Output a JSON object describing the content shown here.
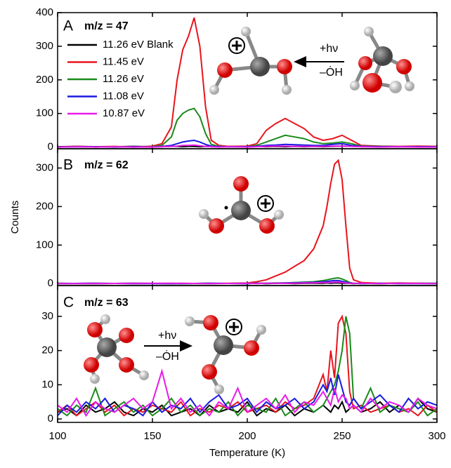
{
  "chart_data": [
    {
      "type": "line",
      "panel": "A",
      "label": "m/z = 47",
      "annotations": [
        "+hν",
        "–ȮH"
      ],
      "xlim": [
        100,
        300
      ],
      "ylim": [
        -5,
        400
      ],
      "yticks": [
        0,
        100,
        200,
        300,
        400
      ],
      "x": [
        100,
        110,
        120,
        130,
        140,
        150,
        155,
        160,
        163,
        166,
        169,
        172,
        175,
        178,
        181,
        185,
        190,
        200,
        205,
        210,
        215,
        220,
        225,
        230,
        235,
        240,
        245,
        250,
        255,
        260,
        270,
        280,
        290,
        300
      ],
      "series": [
        {
          "name": "11.26 eV Blank",
          "color": "#000000",
          "values": [
            1,
            2,
            1,
            1,
            2,
            1,
            1,
            2,
            2,
            1,
            2,
            2,
            1,
            2,
            1,
            1,
            2,
            1,
            2,
            1,
            2,
            1,
            2,
            1,
            2,
            1,
            2,
            3,
            2,
            1,
            2,
            1,
            2,
            1
          ]
        },
        {
          "name": "11.45 eV",
          "color": "#e8141c",
          "values": [
            0,
            2,
            1,
            2,
            0,
            3,
            10,
            60,
            200,
            290,
            330,
            385,
            300,
            120,
            20,
            5,
            2,
            3,
            10,
            50,
            70,
            85,
            70,
            55,
            30,
            20,
            25,
            35,
            20,
            5,
            3,
            2,
            3,
            2
          ]
        },
        {
          "name": "11.26 eV",
          "color": "#1a8a1a",
          "values": [
            0,
            1,
            0,
            1,
            0,
            1,
            5,
            30,
            80,
            100,
            110,
            115,
            90,
            40,
            8,
            2,
            1,
            1,
            5,
            15,
            25,
            35,
            30,
            25,
            15,
            10,
            12,
            15,
            10,
            3,
            2,
            1,
            1,
            1
          ]
        },
        {
          "name": "11.08 eV",
          "color": "#1a1ae0",
          "values": [
            0,
            1,
            1,
            0,
            1,
            0,
            2,
            5,
            10,
            15,
            18,
            20,
            15,
            8,
            3,
            1,
            1,
            1,
            2,
            5,
            6,
            8,
            7,
            6,
            5,
            5,
            8,
            10,
            5,
            2,
            1,
            1,
            1,
            1
          ]
        },
        {
          "name": "10.87 eV",
          "color": "#e81ae8",
          "values": [
            0,
            1,
            0,
            1,
            0,
            0,
            1,
            2,
            3,
            5,
            5,
            6,
            4,
            2,
            1,
            0,
            1,
            0,
            1,
            2,
            3,
            3,
            2,
            2,
            2,
            2,
            3,
            3,
            2,
            1,
            0,
            1,
            0,
            0
          ]
        }
      ]
    },
    {
      "type": "line",
      "panel": "B",
      "label": "m/z = 62",
      "ylabel": "Counts",
      "xlim": [
        100,
        300
      ],
      "ylim": [
        -5,
        350
      ],
      "yticks": [
        0,
        100,
        200,
        300
      ],
      "x": [
        100,
        120,
        140,
        160,
        180,
        200,
        205,
        210,
        215,
        220,
        225,
        230,
        235,
        240,
        242,
        244,
        246,
        248,
        250,
        252,
        254,
        256,
        260,
        270,
        280,
        300
      ],
      "series": [
        {
          "color": "#000000",
          "values": [
            1,
            0,
            1,
            0,
            1,
            0,
            1,
            0,
            1,
            1,
            0,
            1,
            1,
            1,
            2,
            1,
            2,
            2,
            1,
            1,
            1,
            0,
            1,
            0,
            1,
            1
          ]
        },
        {
          "color": "#e8141c",
          "values": [
            0,
            1,
            0,
            1,
            0,
            2,
            5,
            10,
            20,
            30,
            45,
            60,
            90,
            150,
            200,
            260,
            310,
            320,
            270,
            150,
            40,
            10,
            3,
            1,
            2,
            0
          ]
        },
        {
          "color": "#1a8a1a",
          "values": [
            0,
            0,
            1,
            0,
            0,
            1,
            1,
            1,
            2,
            2,
            3,
            4,
            5,
            8,
            10,
            12,
            14,
            15,
            12,
            8,
            3,
            1,
            0,
            0,
            1,
            0
          ]
        },
        {
          "color": "#1a1ae0",
          "values": [
            0,
            1,
            0,
            0,
            1,
            0,
            1,
            1,
            1,
            2,
            2,
            3,
            3,
            5,
            6,
            7,
            8,
            8,
            6,
            4,
            2,
            1,
            0,
            1,
            0,
            0
          ]
        },
        {
          "color": "#e81ae8",
          "values": [
            0,
            0,
            1,
            1,
            0,
            1,
            0,
            1,
            1,
            1,
            1,
            2,
            2,
            3,
            3,
            3,
            4,
            4,
            3,
            2,
            1,
            1,
            1,
            0,
            1,
            0
          ]
        }
      ]
    },
    {
      "type": "line",
      "panel": "C",
      "label": "m/z = 63",
      "xlabel": "Temperature (K)",
      "annotations": [
        "+hν",
        "–ȮH"
      ],
      "xlim": [
        100,
        300
      ],
      "xticks": [
        100,
        150,
        200,
        250,
        300
      ],
      "ylim": [
        -1,
        39
      ],
      "yticks": [
        0,
        10,
        20,
        30
      ],
      "x": [
        100,
        105,
        110,
        115,
        120,
        125,
        130,
        135,
        140,
        145,
        150,
        155,
        160,
        165,
        170,
        175,
        180,
        185,
        190,
        195,
        200,
        205,
        210,
        215,
        220,
        225,
        230,
        235,
        240,
        242,
        244,
        246,
        248,
        250,
        252,
        254,
        256,
        260,
        265,
        270,
        275,
        280,
        285,
        290,
        295,
        300
      ],
      "series": [
        {
          "color": "#000000",
          "values": [
            2,
            3,
            1,
            4,
            2,
            3,
            5,
            2,
            1,
            3,
            2,
            4,
            1,
            2,
            3,
            1,
            4,
            2,
            3,
            2,
            5,
            1,
            3,
            2,
            4,
            1,
            3,
            2,
            4,
            3,
            2,
            4,
            3,
            5,
            2,
            3,
            4,
            2,
            3,
            5,
            2,
            4,
            2,
            6,
            3,
            2
          ]
        },
        {
          "color": "#e8141c",
          "values": [
            2,
            4,
            1,
            3,
            5,
            2,
            4,
            1,
            3,
            2,
            4,
            3,
            2,
            5,
            1,
            3,
            2,
            4,
            3,
            5,
            2,
            3,
            4,
            2,
            5,
            3,
            4,
            6,
            13,
            8,
            20,
            12,
            28,
            30,
            25,
            8,
            3,
            4,
            2,
            3,
            4,
            2,
            3,
            1,
            4,
            2
          ]
        },
        {
          "color": "#1a8a1a",
          "values": [
            3,
            1,
            4,
            2,
            9,
            1,
            3,
            5,
            2,
            4,
            1,
            3,
            6,
            2,
            4,
            1,
            3,
            2,
            5,
            1,
            4,
            3,
            2,
            6,
            1,
            3,
            5,
            2,
            4,
            6,
            8,
            10,
            14,
            20,
            30,
            25,
            6,
            3,
            9,
            2,
            4,
            3,
            2,
            5,
            1,
            3
          ]
        },
        {
          "color": "#1a1ae0",
          "values": [
            1,
            4,
            2,
            5,
            3,
            6,
            2,
            4,
            3,
            1,
            5,
            2,
            4,
            3,
            6,
            2,
            5,
            7,
            3,
            4,
            6,
            2,
            5,
            3,
            4,
            6,
            3,
            5,
            10,
            8,
            12,
            7,
            13,
            9,
            5,
            4,
            6,
            3,
            5,
            7,
            4,
            2,
            6,
            3,
            5,
            4
          ]
        },
        {
          "color": "#e81ae8",
          "values": [
            4,
            2,
            6,
            1,
            5,
            3,
            2,
            4,
            6,
            3,
            5,
            14,
            3,
            6,
            2,
            4,
            1,
            5,
            3,
            9,
            2,
            4,
            6,
            3,
            7,
            2,
            5,
            4,
            8,
            6,
            4,
            9,
            5,
            7,
            6,
            3,
            4,
            2,
            6,
            3,
            5,
            4,
            2,
            6,
            4,
            3
          ]
        }
      ]
    }
  ]
}
